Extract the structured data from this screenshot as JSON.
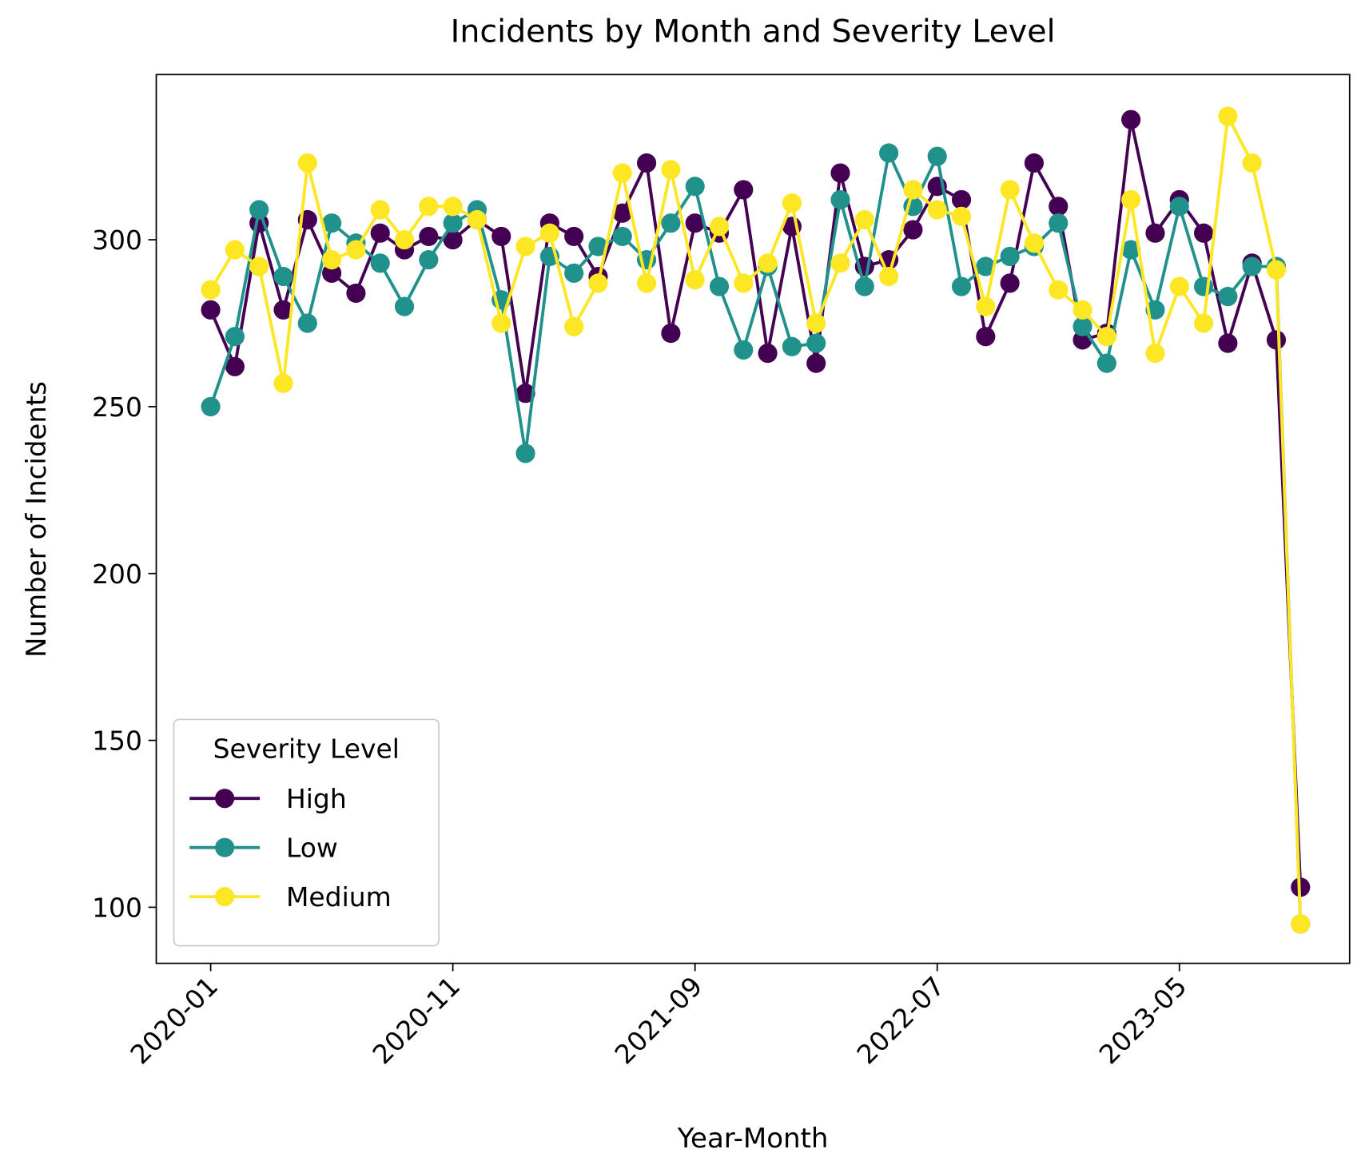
{
  "chart_data": {
    "type": "line",
    "title": "Incidents by Month and Severity Level",
    "x_label": "Year-Month",
    "y_label": "Number of Incidents",
    "categories": [
      "2020-01",
      null,
      null,
      null,
      null,
      null,
      null,
      null,
      null,
      null,
      "2020-11",
      null,
      null,
      null,
      null,
      null,
      null,
      null,
      null,
      null,
      "2021-09",
      null,
      null,
      null,
      null,
      null,
      null,
      null,
      null,
      null,
      "2022-07",
      null,
      null,
      null,
      null,
      null,
      null,
      null,
      null,
      null,
      "2023-05",
      null,
      null,
      null,
      null,
      null
    ],
    "series": [
      {
        "name": "High",
        "color": "#440154",
        "values": [
          279,
          262,
          305,
          279,
          306,
          290,
          284,
          302,
          297,
          301,
          300,
          306,
          301,
          254,
          305,
          301,
          289,
          308,
          323,
          272,
          305,
          302,
          315,
          266,
          304,
          263,
          320,
          292,
          294,
          303,
          316,
          312,
          271,
          287,
          323,
          310,
          270,
          272,
          336,
          302,
          312,
          302,
          269,
          293,
          270,
          106
        ]
      },
      {
        "name": "Low",
        "color": "#21918c",
        "values": [
          250,
          271,
          309,
          289,
          275,
          305,
          299,
          293,
          280,
          294,
          305,
          309,
          282,
          236,
          295,
          290,
          298,
          301,
          294,
          305,
          316,
          286,
          267,
          292,
          268,
          269,
          312,
          286,
          326,
          310,
          325,
          286,
          292,
          295,
          298,
          305,
          274,
          263,
          297,
          279,
          310,
          286,
          283,
          292,
          292,
          95
        ]
      },
      {
        "name": "Medium",
        "color": "#fde725",
        "values": [
          285,
          297,
          292,
          257,
          323,
          294,
          297,
          309,
          300,
          310,
          310,
          306,
          275,
          298,
          302,
          274,
          287,
          320,
          287,
          321,
          288,
          304,
          287,
          293,
          311,
          275,
          293,
          306,
          289,
          315,
          309,
          307,
          280,
          315,
          299,
          285,
          279,
          271,
          312,
          266,
          286,
          275,
          337,
          323,
          291,
          95
        ]
      }
    ],
    "ylim": [
      83.2,
      349.5
    ],
    "yticks": [
      100,
      150,
      200,
      250,
      300
    ],
    "legend_title": "Severity Level",
    "legend_position": "lower left",
    "grid": false
  }
}
